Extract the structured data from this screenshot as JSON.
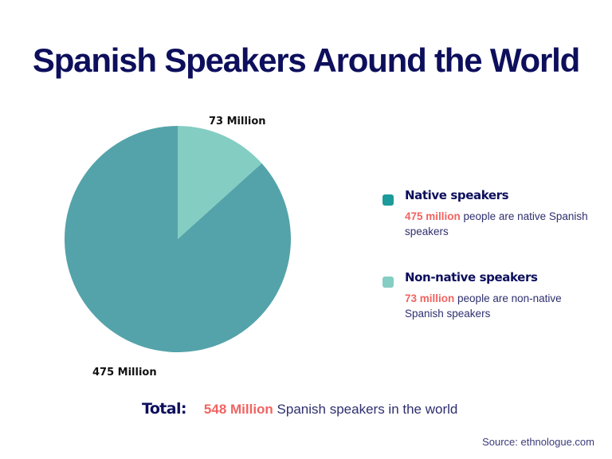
{
  "title": "Spanish Speakers Around the World",
  "colors": {
    "native": "#54a3aa",
    "non_native": "#84cdc2",
    "native_swatch": "#1d9a9c",
    "title": "#0d0f5c",
    "highlight": "#f06462",
    "body_text": "#2e2f6e"
  },
  "pie_labels": {
    "non_native": "73 Million",
    "native": "475 Million"
  },
  "legend": [
    {
      "title": "Native speakers",
      "highlight": "475 million",
      "text": " people are native Spanish speakers"
    },
    {
      "title": "Non-native speakers",
      "highlight": "73 million",
      "text": " people are non-native Spanish speakers"
    }
  ],
  "total": {
    "label": "Total:",
    "value": "548 Million",
    "text": " Spanish speakers in the world"
  },
  "source": "Source: ethnologue.com",
  "chart_data": {
    "type": "pie",
    "title": "Spanish Speakers Around the World",
    "categories": [
      "Native speakers",
      "Non-native speakers"
    ],
    "values": [
      475,
      73
    ],
    "unit": "million",
    "slice_labels": [
      "475 Million",
      "73 Million"
    ],
    "total": 548,
    "legend_position": "right",
    "colors": [
      "#54a3aa",
      "#84cdc2"
    ],
    "source": "ethnologue.com"
  }
}
